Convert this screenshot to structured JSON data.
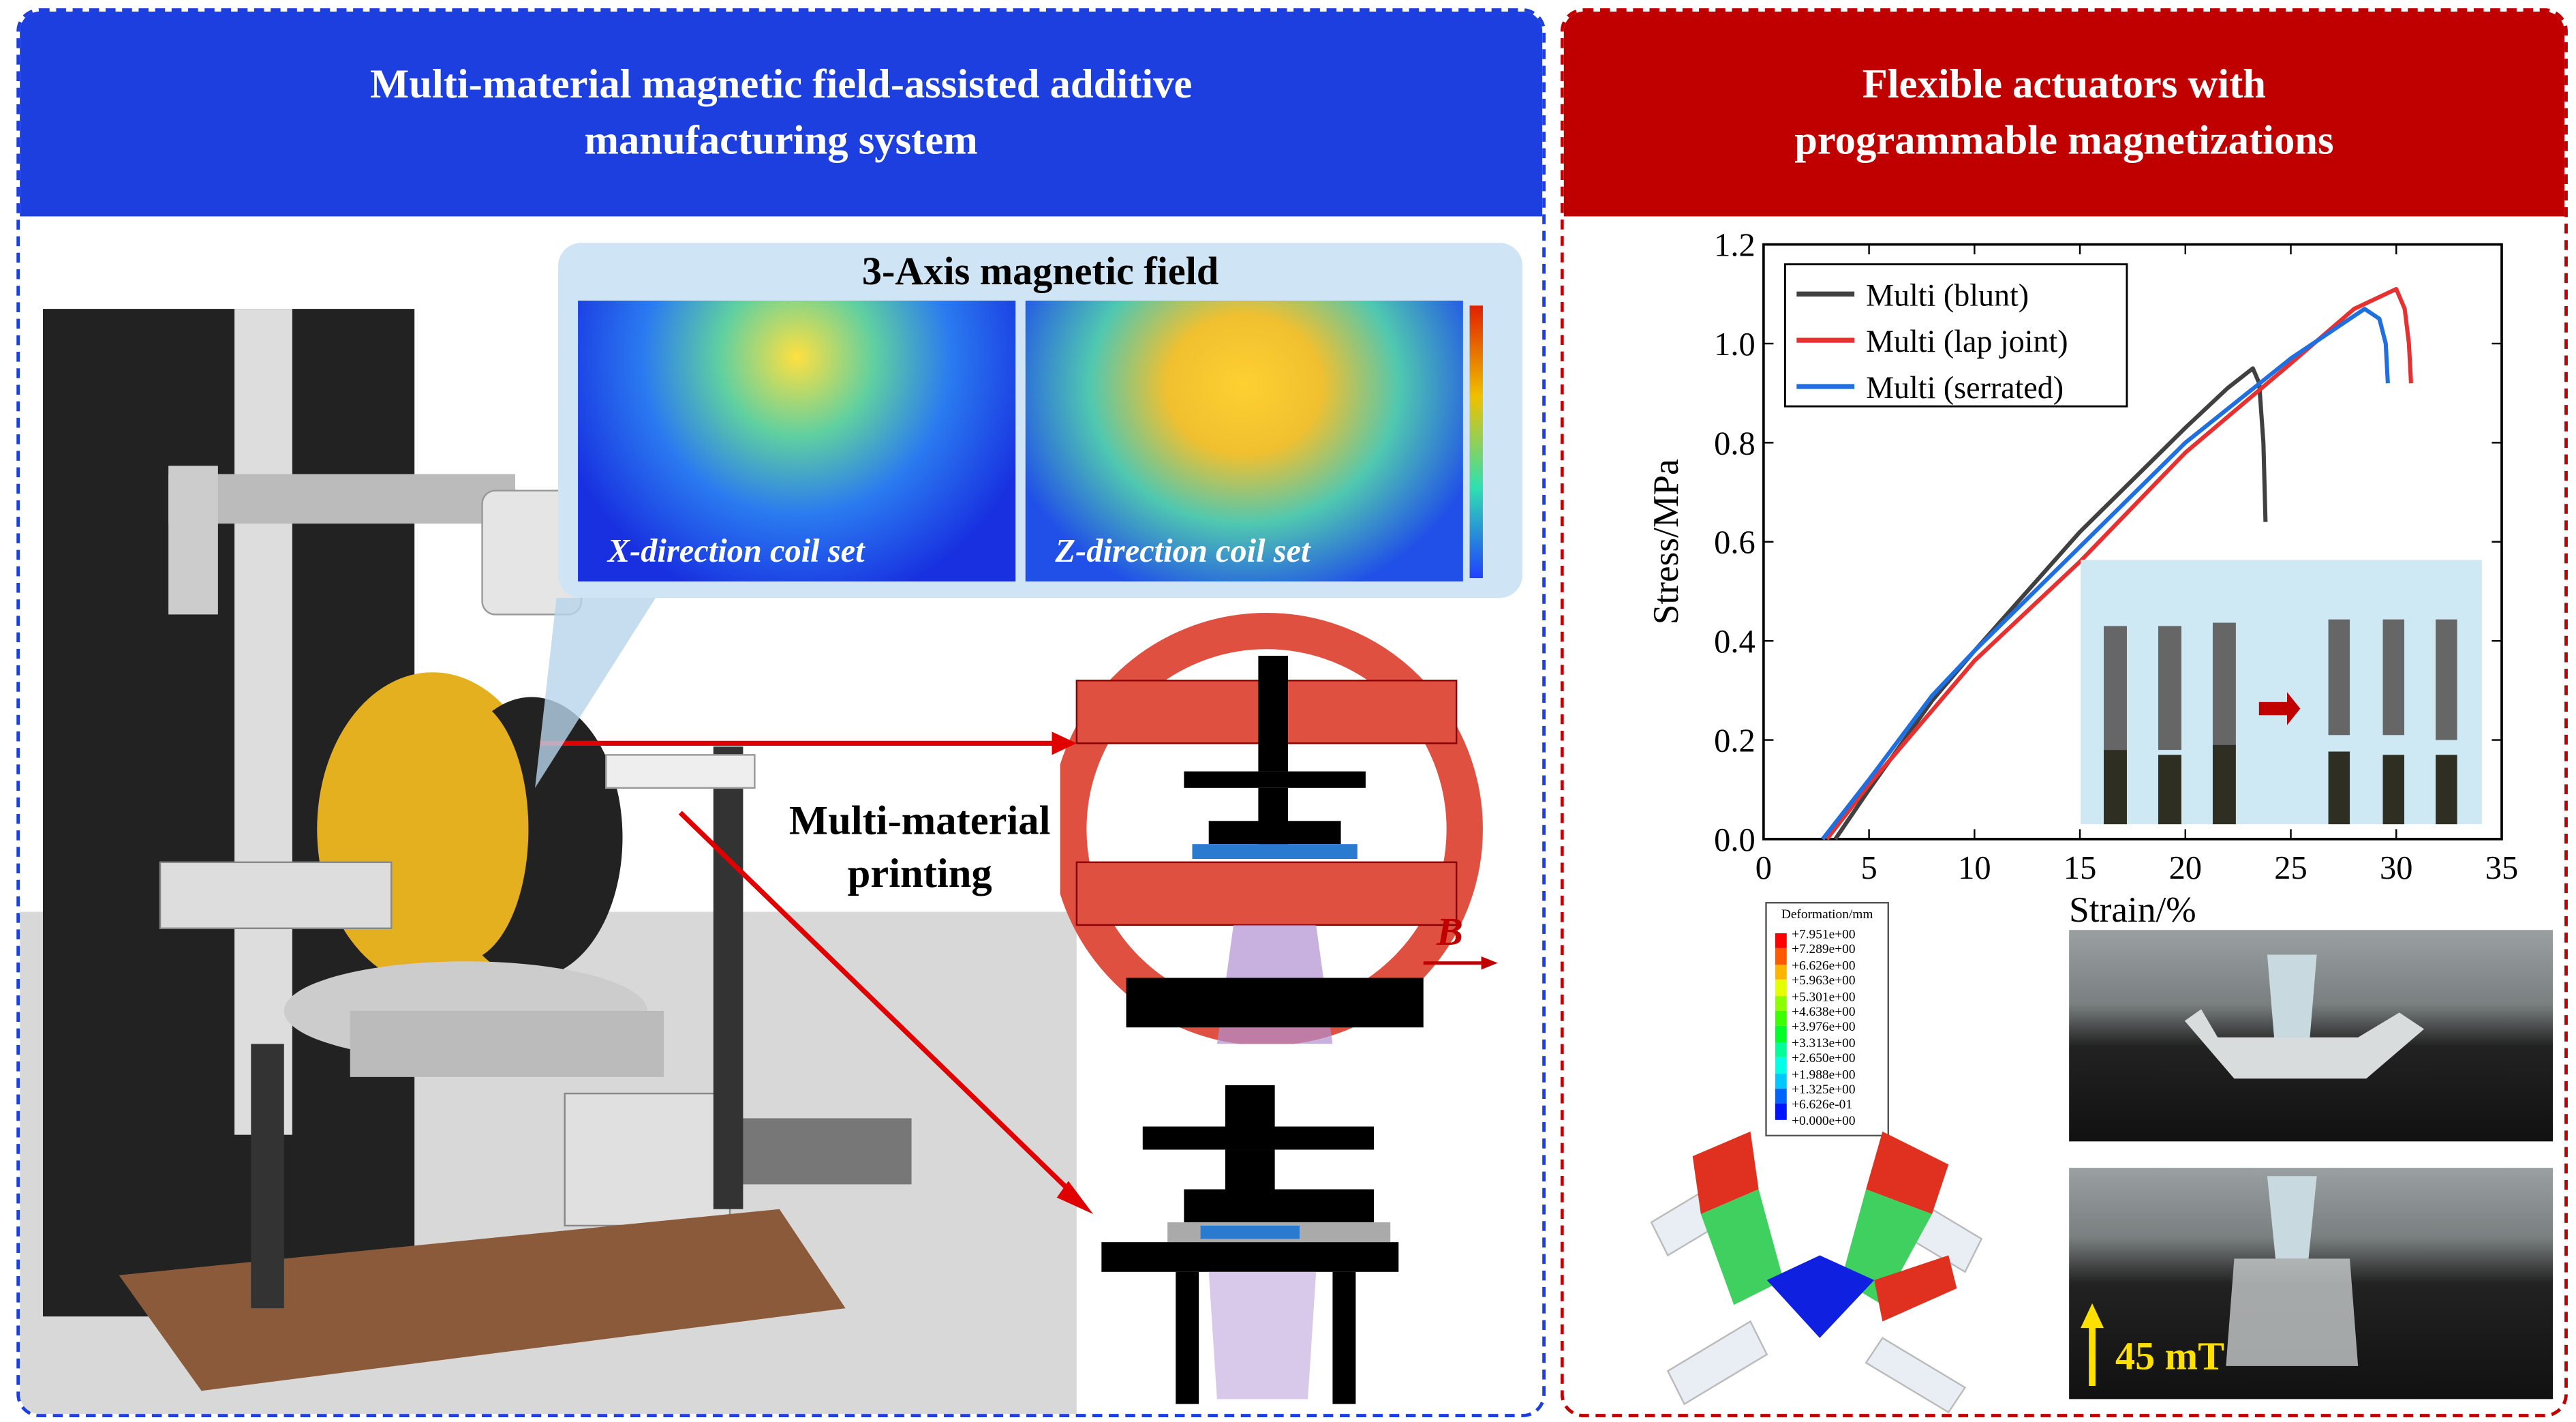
{
  "left_panel": {
    "title_line1": "Multi-material magnetic field-assisted additive",
    "title_line2": "manufacturing system",
    "header_color": "#1e3fe0",
    "field_box_title": "3-Axis magnetic field",
    "x_coil_label": "X-direction coil set",
    "z_coil_label": "Z-direction coil set",
    "printing_label_line1": "Multi-material",
    "printing_label_line2": "printing",
    "field_symbol": "B"
  },
  "right_panel": {
    "title_line1": "Flexible actuators with",
    "title_line2": "programmable magnetizations",
    "header_color": "#c00000",
    "deformation_legend": {
      "title": "Deformation/mm",
      "values": [
        "+7.951e+00",
        "+7.289e+00",
        "+6.626e+00",
        "+5.963e+00",
        "+5.301e+00",
        "+4.638e+00",
        "+3.976e+00",
        "+3.313e+00",
        "+2.650e+00",
        "+1.988e+00",
        "+1.325e+00",
        "+6.626e-01",
        "+0.000e+00"
      ],
      "colors": [
        "#ff0000",
        "#ff5a00",
        "#ffb400",
        "#e6ff00",
        "#8cff00",
        "#3cff00",
        "#00ff28",
        "#00ff96",
        "#00ffe6",
        "#00c8ff",
        "#0064ff",
        "#0014ff"
      ]
    },
    "field_strength": "45 mT"
  },
  "chart_data": {
    "type": "line",
    "xlabel": "Strain/%",
    "ylabel": "Stress/MPa",
    "xlim": [
      0,
      35
    ],
    "ylim": [
      0,
      1.2
    ],
    "xticks": [
      "0",
      "5",
      "10",
      "15",
      "20",
      "25",
      "30",
      "35"
    ],
    "yticks": [
      "0.0",
      "0.2",
      "0.4",
      "0.6",
      "0.8",
      "1.0",
      "1.2"
    ],
    "legend_position": "top-left",
    "series": [
      {
        "name": "Multi (blunt)",
        "color": "#404040",
        "x": [
          3.4,
          5,
          8,
          10,
          15,
          20,
          22,
          23.2,
          23.5,
          23.7,
          23.8
        ],
        "y": [
          0,
          0.1,
          0.28,
          0.38,
          0.62,
          0.83,
          0.91,
          0.95,
          0.92,
          0.8,
          0.64
        ]
      },
      {
        "name": "Multi (lap joint)",
        "color": "#e83030",
        "x": [
          3.0,
          5,
          8,
          10,
          15,
          20,
          25,
          28,
          30,
          30.4,
          30.6,
          30.7
        ],
        "y": [
          0,
          0.11,
          0.26,
          0.36,
          0.56,
          0.78,
          0.96,
          1.07,
          1.11,
          1.07,
          1.0,
          0.92
        ]
      },
      {
        "name": "Multi (serrated)",
        "color": "#1f6fe0",
        "x": [
          2.8,
          5,
          8,
          10,
          15,
          20,
          25,
          28.5,
          29.2,
          29.5,
          29.6
        ],
        "y": [
          0,
          0.12,
          0.29,
          0.38,
          0.59,
          0.8,
          0.97,
          1.07,
          1.05,
          1.0,
          0.92
        ]
      }
    ]
  }
}
